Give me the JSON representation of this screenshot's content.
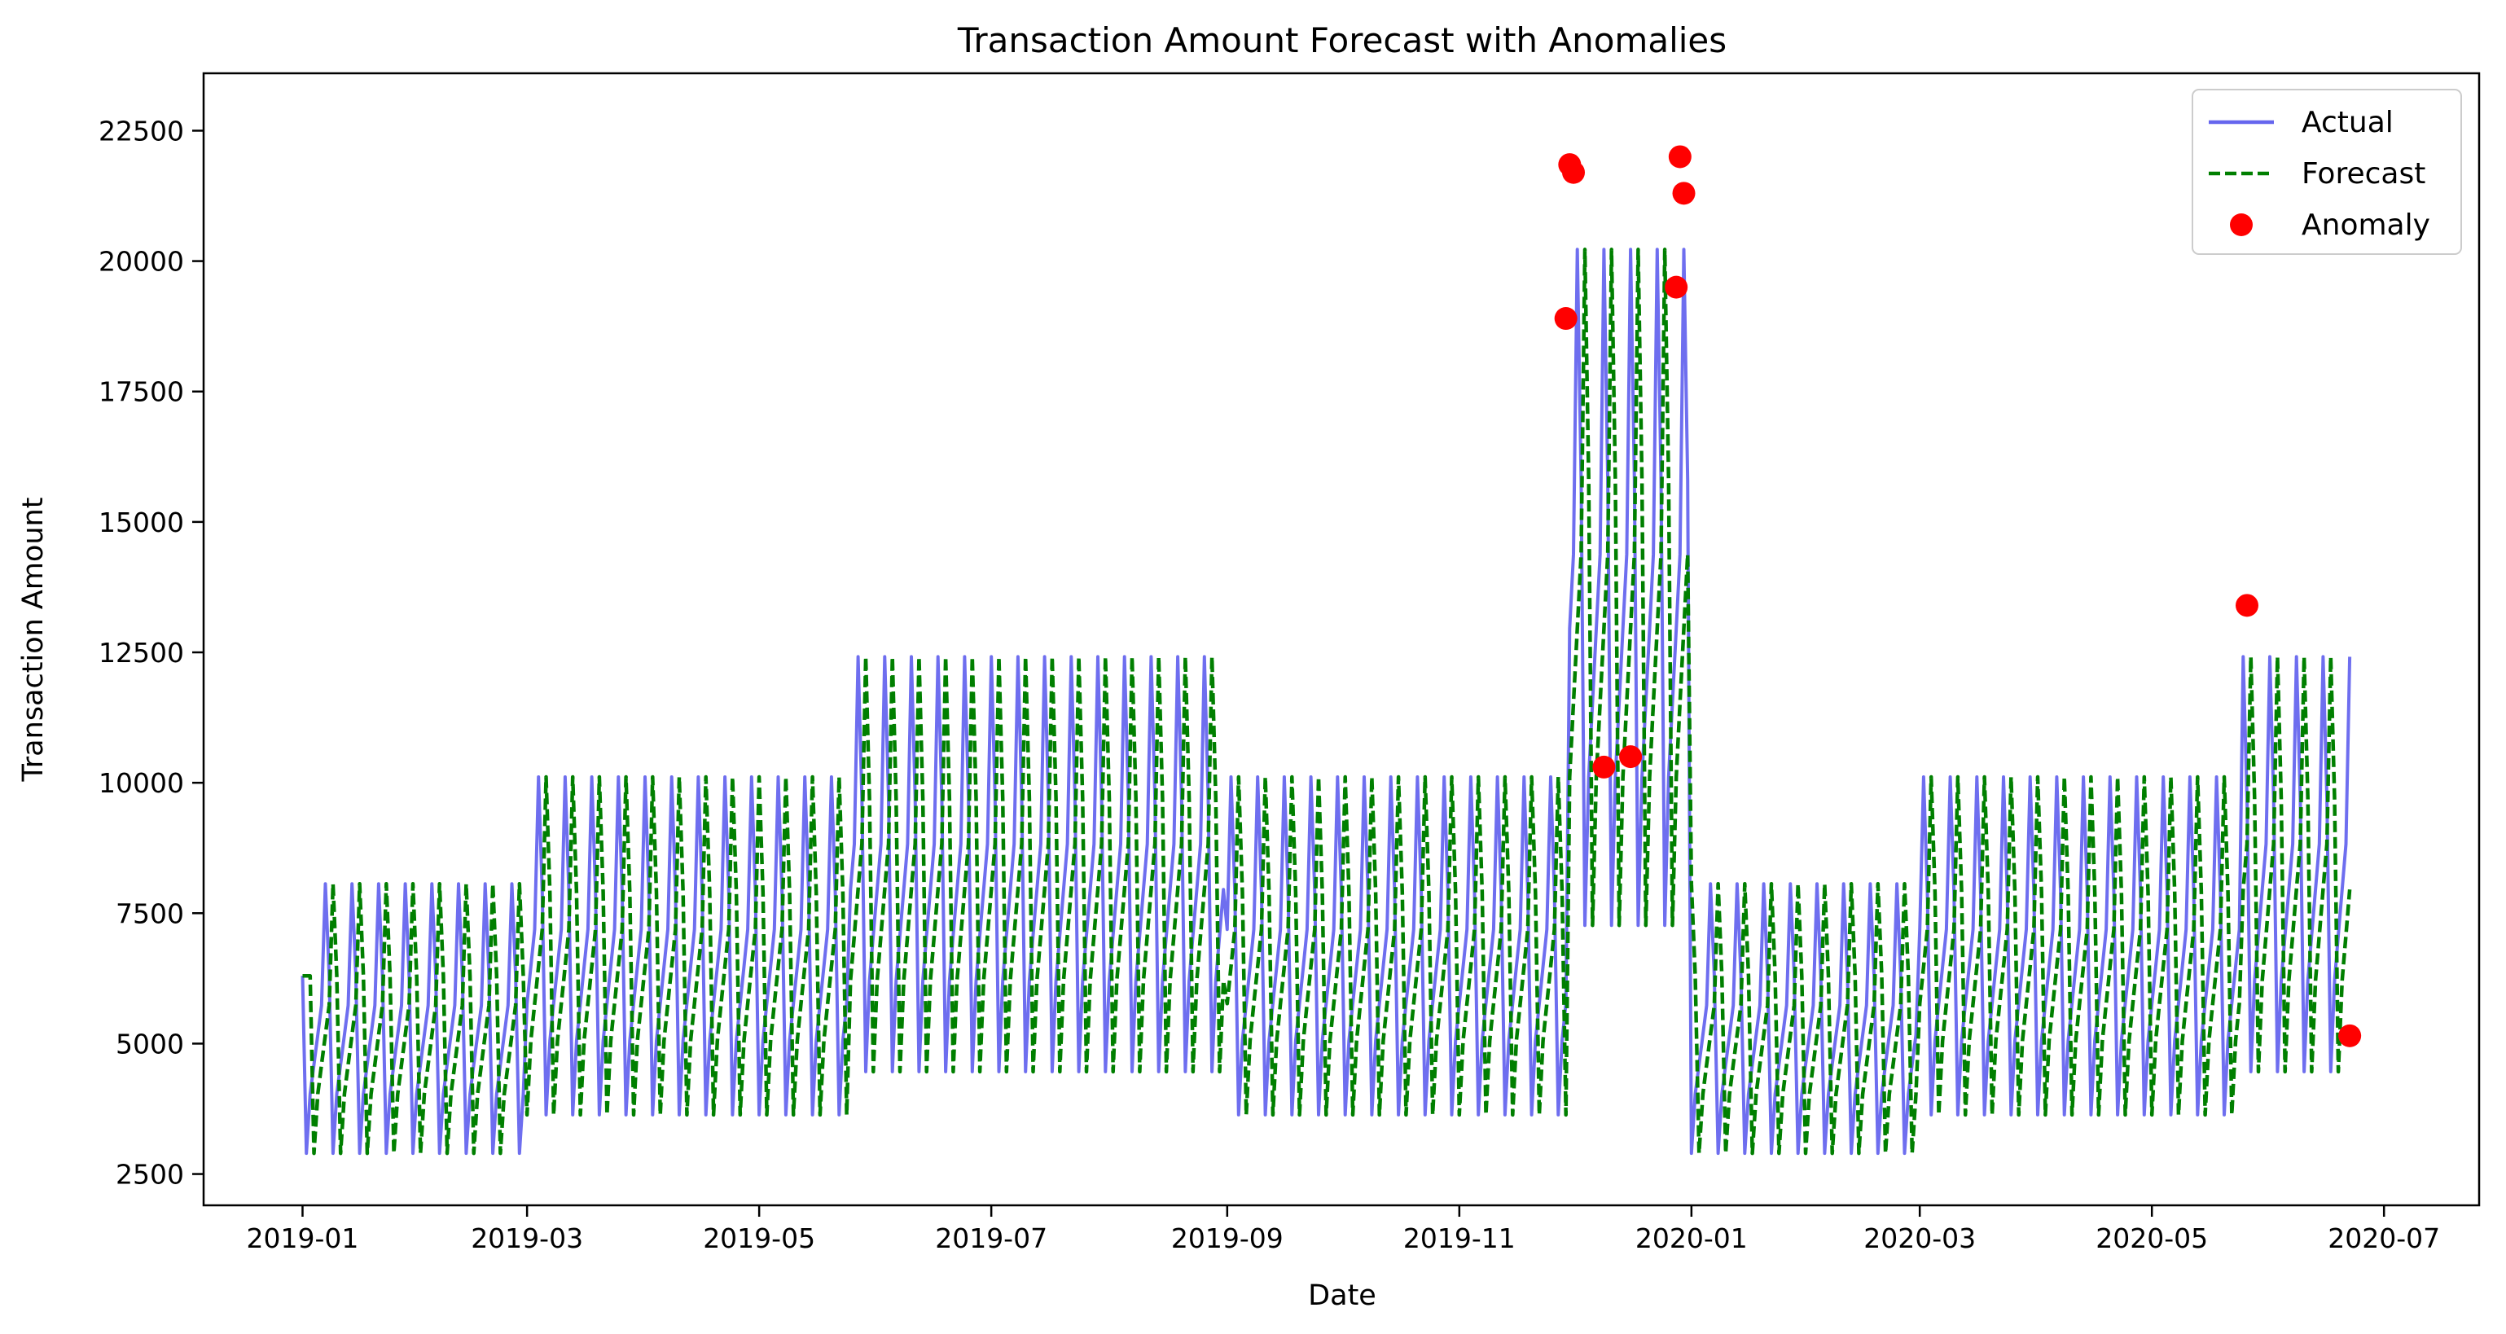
{
  "chart_data": {
    "type": "line",
    "title": "Transaction Amount Forecast with Anomalies",
    "xlabel": "Date",
    "ylabel": "Transaction Amount",
    "x_axis_type": "date",
    "xlim": [
      "2018-12-06",
      "2020-07-26"
    ],
    "ylim": [
      1900,
      23600
    ],
    "x_ticks": [
      "2019-01-01",
      "2019-03-01",
      "2019-05-01",
      "2019-07-01",
      "2019-09-01",
      "2019-11-01",
      "2020-01-01",
      "2020-03-01",
      "2020-05-01",
      "2020-07-01"
    ],
    "x_tick_labels": [
      "2019-01",
      "2019-03",
      "2019-05",
      "2019-07",
      "2019-09",
      "2019-11",
      "2020-01",
      "2020-03",
      "2020-05",
      "2020-07"
    ],
    "y_ticks": [
      2500,
      5000,
      7500,
      10000,
      12500,
      15000,
      17500,
      20000,
      22500
    ],
    "y_tick_labels": [
      "2500",
      "5000",
      "7500",
      "10000",
      "12500",
      "15000",
      "17500",
      "20000",
      "22500"
    ],
    "grid": false,
    "legend_position": "top-right",
    "series": [
      {
        "name": "Actual",
        "style": "solid",
        "color": "#6666ee",
        "data_range": [
          "2019-01-01",
          "2020-06-22"
        ],
        "weekly_pattern": [
          1.0,
          0.46,
          0.64,
          0.73,
          0.82,
          0.91,
          1.28
        ],
        "period_levels": [
          {
            "from": "2019-01-01",
            "to": "2019-02-28",
            "level": 6300
          },
          {
            "from": "2019-03-01",
            "to": "2019-05-24",
            "level": 7900
          },
          {
            "from": "2019-05-25",
            "to": "2019-08-31",
            "level": 9700
          },
          {
            "from": "2019-09-01",
            "to": "2019-11-29",
            "level": 7900
          },
          {
            "from": "2019-11-30",
            "to": "2019-12-31",
            "level": 15800
          },
          {
            "from": "2020-01-01",
            "to": "2020-02-29",
            "level": 6300
          },
          {
            "from": "2020-03-01",
            "to": "2020-05-24",
            "level": 7900
          },
          {
            "from": "2020-05-25",
            "to": "2020-06-22",
            "level": 9700
          }
        ]
      },
      {
        "name": "Forecast",
        "style": "dashed",
        "color": "#007f00",
        "data_range": [
          "2019-01-01",
          "2020-06-22"
        ],
        "weekly_pattern": [
          1.0,
          0.46,
          0.64,
          0.73,
          0.82,
          0.91,
          1.28
        ],
        "lag_days": 2
      },
      {
        "name": "Anomaly",
        "style": "marker",
        "color": "#ff0000",
        "points": [
          {
            "x": "2019-11-29",
            "y": 18900
          },
          {
            "x": "2019-11-30",
            "y": 21850
          },
          {
            "x": "2019-12-01",
            "y": 21700
          },
          {
            "x": "2019-12-09",
            "y": 10300
          },
          {
            "x": "2019-12-16",
            "y": 10500
          },
          {
            "x": "2019-12-28",
            "y": 19500
          },
          {
            "x": "2019-12-29",
            "y": 22000
          },
          {
            "x": "2019-12-30",
            "y": 21300
          },
          {
            "x": "2020-05-26",
            "y": 13400
          },
          {
            "x": "2020-06-22",
            "y": 5150
          }
        ]
      }
    ]
  }
}
